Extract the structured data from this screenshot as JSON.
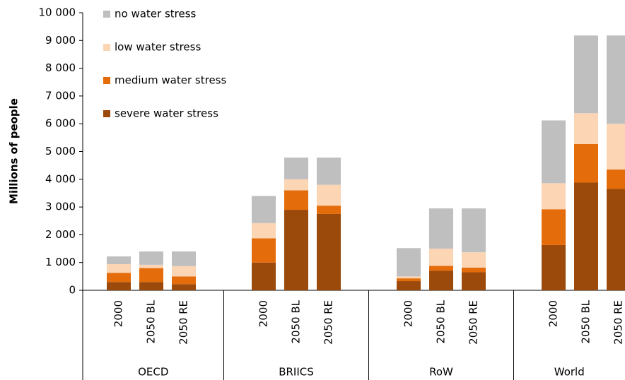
{
  "chart_data": {
    "type": "stacked_bar",
    "y_label": "Millions of people",
    "categories": [
      "2000",
      "2050 BL",
      "2050 RE",
      "2000",
      "2050 BL",
      "2050 RE",
      "2000",
      "2050 BL",
      "2050 RE",
      "2000",
      "2050 BL",
      "2050 RE"
    ],
    "groups": [
      "OECD",
      "BRIICS",
      "RoW",
      "World"
    ],
    "series": [
      {
        "name": "severe water stress",
        "color": "#9c4a0c",
        "values": [
          300,
          300,
          220,
          1000,
          2900,
          2750,
          330,
          700,
          650,
          1630,
          3880,
          3650
        ]
      },
      {
        "name": "medium water stress",
        "color": "#e46c0a",
        "values": [
          330,
          500,
          280,
          870,
          700,
          300,
          100,
          180,
          170,
          1290,
          1390,
          700
        ]
      },
      {
        "name": "low water stress",
        "color": "#fcd5b5",
        "values": [
          310,
          120,
          370,
          550,
          400,
          750,
          70,
          620,
          550,
          940,
          1110,
          1650
        ]
      },
      {
        "name": "no water stress",
        "color": "#bfbfbf",
        "values": [
          280,
          480,
          530,
          980,
          780,
          980,
          1020,
          1450,
          1580,
          2260,
          2800,
          3180
        ]
      }
    ],
    "ylim": [
      0,
      10000
    ],
    "yticks": [
      0,
      {
        "value": 1000,
        "label": "1 000"
      },
      {
        "value": 2000,
        "label": "2 000"
      },
      {
        "value": 3000,
        "label": "3 000"
      },
      {
        "value": 4000,
        "label": "4 000"
      },
      {
        "value": 5000,
        "label": "5 000"
      },
      {
        "value": 6000,
        "label": "6 000"
      },
      {
        "value": 7000,
        "label": "7 000"
      },
      {
        "value": 8000,
        "label": "8 000"
      },
      {
        "value": 9000,
        "label": "9 000"
      },
      {
        "value": 10000,
        "label": "10 000"
      }
    ],
    "legend": "top-left"
  }
}
